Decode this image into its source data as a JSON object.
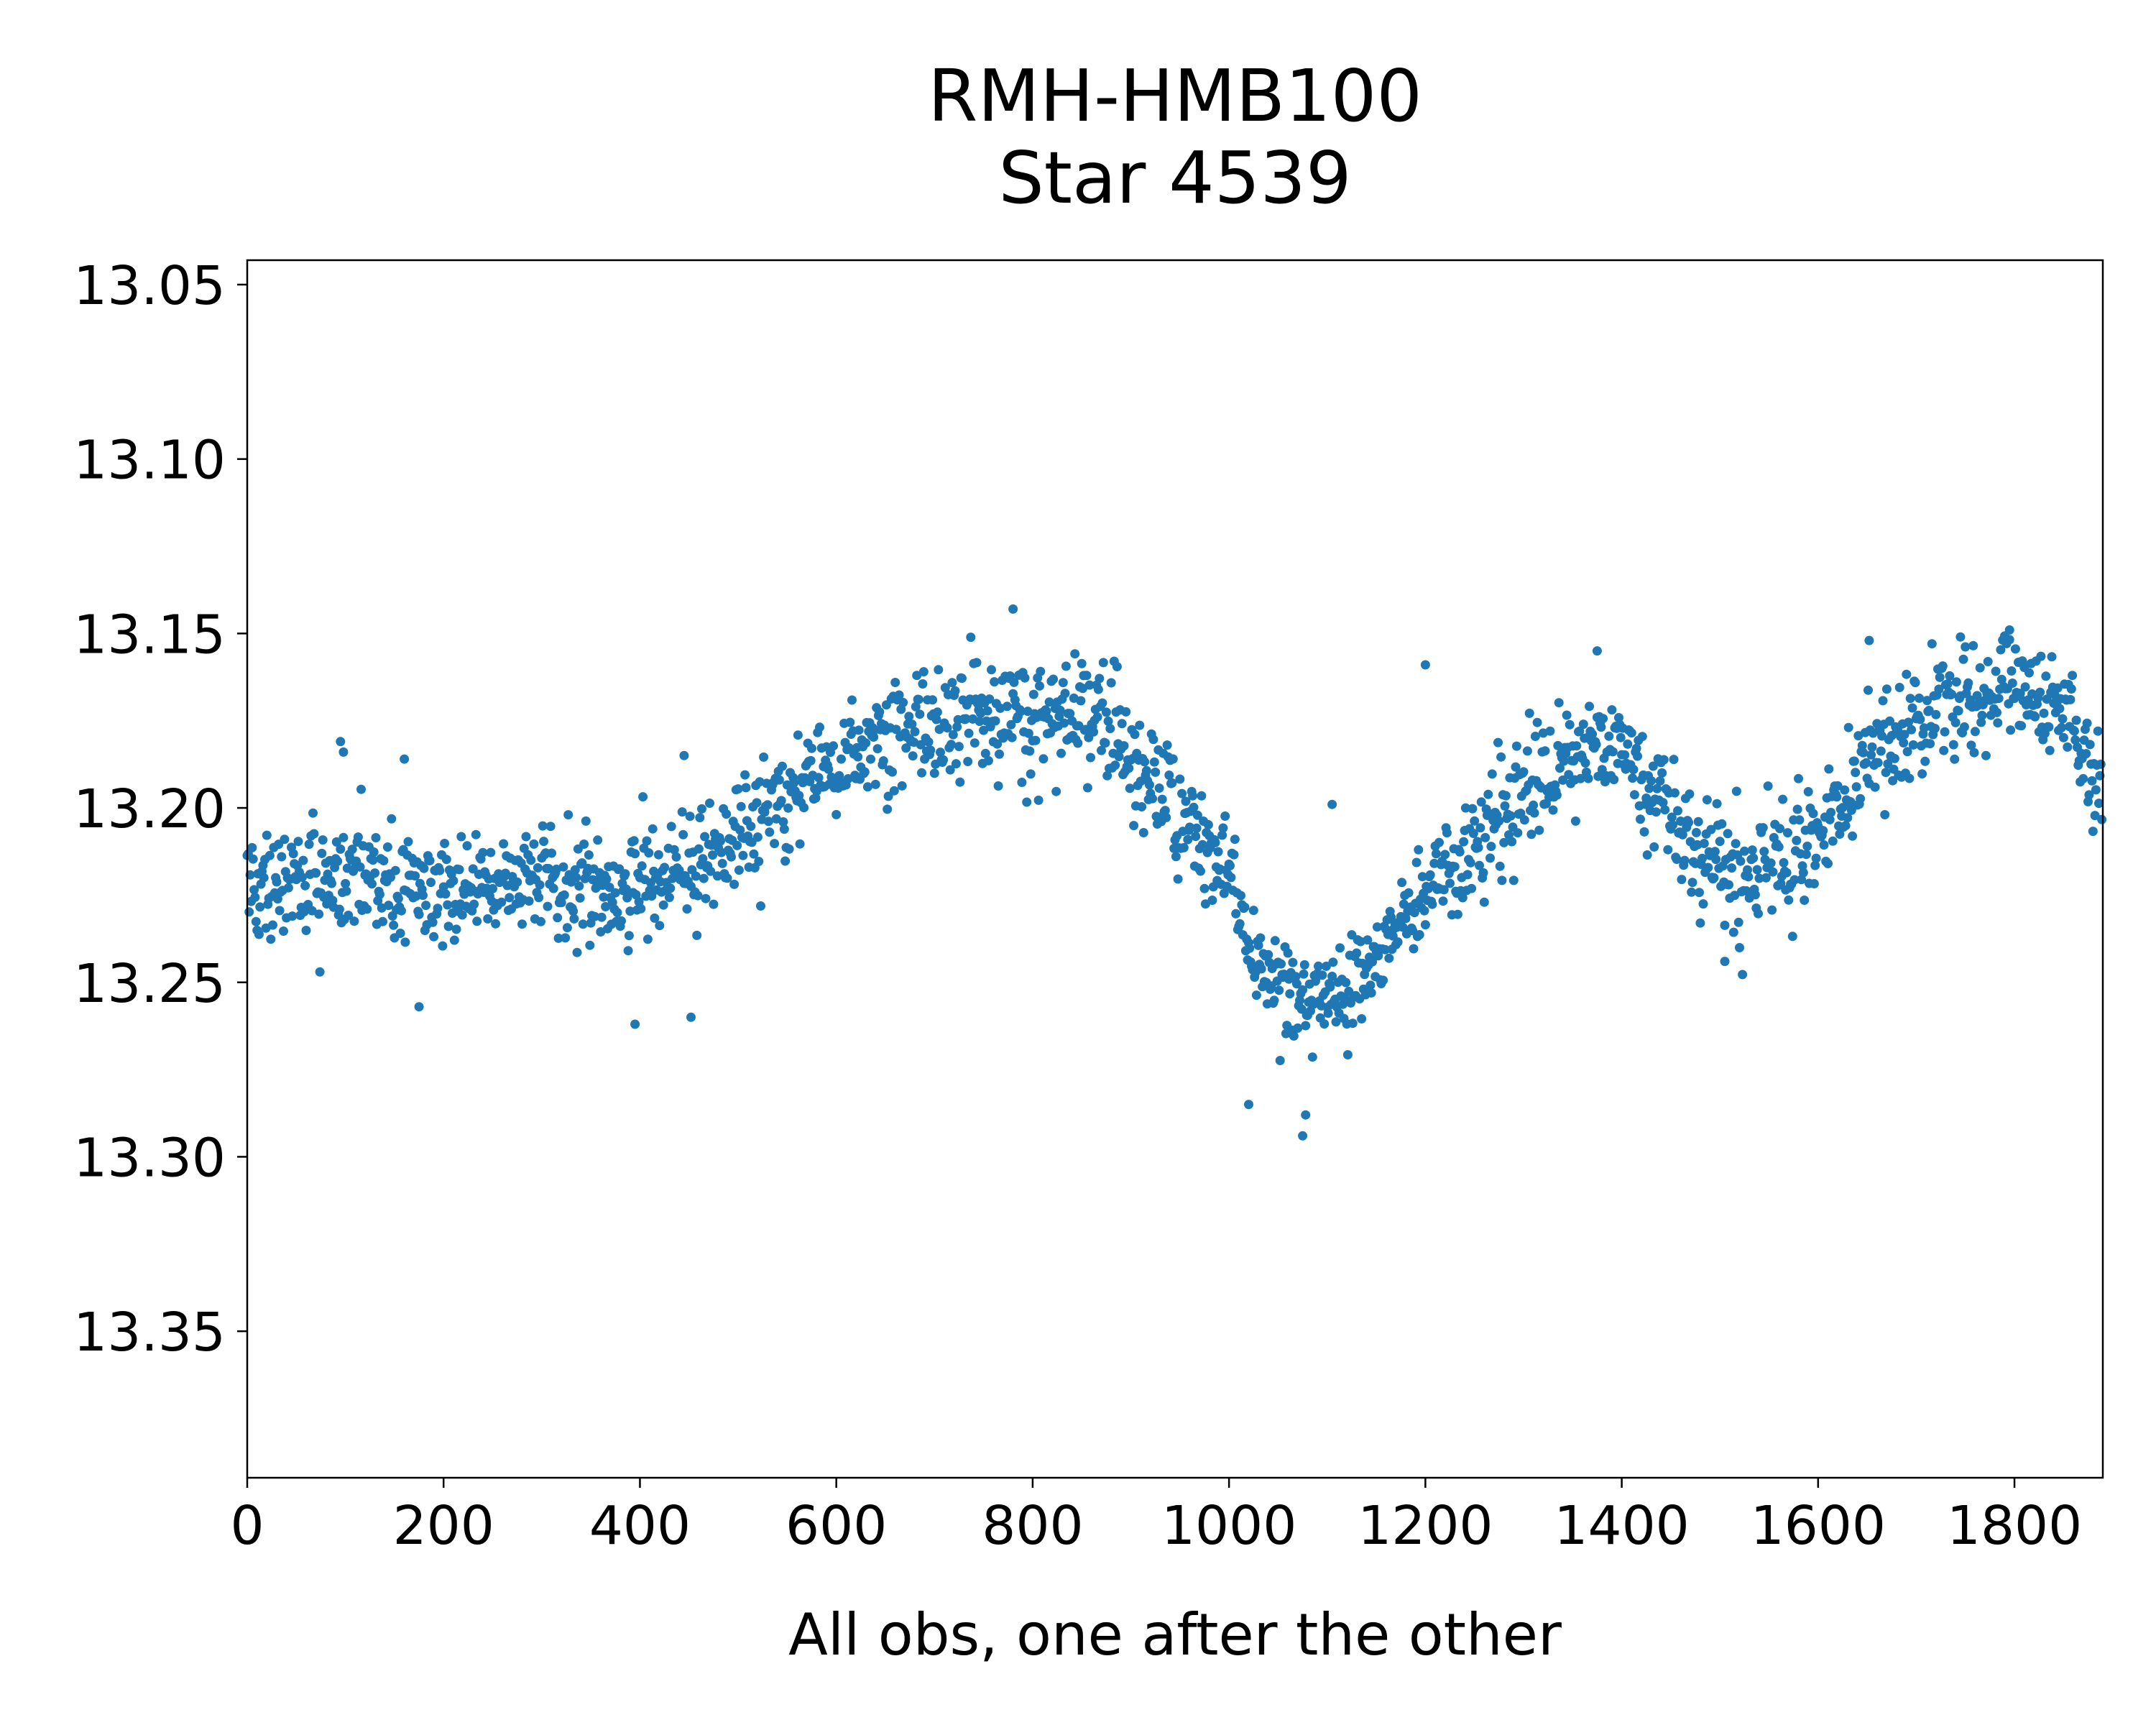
{
  "chart_data": {
    "type": "scatter",
    "title_lines": [
      "RMH-HMB100",
      "Star 4539"
    ],
    "xlabel": "All obs, one after the other",
    "ylabel": "",
    "xlim": [
      0,
      1890
    ],
    "ylim": [
      13.392,
      13.043
    ],
    "y_inverted": true,
    "x_ticks": [
      0,
      200,
      400,
      600,
      800,
      1000,
      1200,
      1400,
      1600,
      1800
    ],
    "x_tick_labels": [
      "0",
      "200",
      "400",
      "600",
      "800",
      "1000",
      "1200",
      "1400",
      "1600",
      "1800"
    ],
    "y_ticks": [
      13.05,
      13.1,
      13.15,
      13.2,
      13.25,
      13.3,
      13.35
    ],
    "y_tick_labels": [
      "13.05",
      "13.10",
      "13.15",
      "13.20",
      "13.25",
      "13.30",
      "13.35"
    ],
    "grid": false,
    "marker_color": "#1f77b4",
    "n_points": 1890,
    "trend": {
      "x": [
        0,
        100,
        200,
        300,
        400,
        460,
        500,
        560,
        620,
        680,
        740,
        800,
        860,
        900,
        960,
        1000,
        1030,
        1080,
        1130,
        1180,
        1240,
        1290,
        1340,
        1380,
        1420,
        1480,
        1530,
        1580,
        1620,
        1660,
        1720,
        1800,
        1860,
        1890
      ],
      "y": [
        13.222,
        13.219,
        13.224,
        13.219,
        13.221,
        13.218,
        13.208,
        13.195,
        13.183,
        13.178,
        13.172,
        13.176,
        13.174,
        13.183,
        13.206,
        13.218,
        13.247,
        13.258,
        13.249,
        13.231,
        13.214,
        13.197,
        13.188,
        13.18,
        13.192,
        13.212,
        13.218,
        13.213,
        13.198,
        13.183,
        13.175,
        13.165,
        13.175,
        13.198
      ]
    },
    "scatter_sigma": 0.008,
    "outliers": [
      {
        "x": 95,
        "y": 13.181
      },
      {
        "x": 98,
        "y": 13.184
      },
      {
        "x": 160,
        "y": 13.186
      },
      {
        "x": 175,
        "y": 13.257
      },
      {
        "x": 395,
        "y": 13.262
      },
      {
        "x": 452,
        "y": 13.26
      },
      {
        "x": 445,
        "y": 13.185
      },
      {
        "x": 780,
        "y": 13.143
      },
      {
        "x": 1020,
        "y": 13.285
      },
      {
        "x": 1075,
        "y": 13.294
      },
      {
        "x": 1078,
        "y": 13.288
      },
      {
        "x": 1200,
        "y": 13.159
      },
      {
        "x": 1105,
        "y": 13.199
      },
      {
        "x": 1375,
        "y": 13.155
      },
      {
        "x": 1505,
        "y": 13.244
      },
      {
        "x": 1652,
        "y": 13.152
      },
      {
        "x": 1745,
        "y": 13.151
      },
      {
        "x": 1795,
        "y": 13.149
      }
    ]
  }
}
